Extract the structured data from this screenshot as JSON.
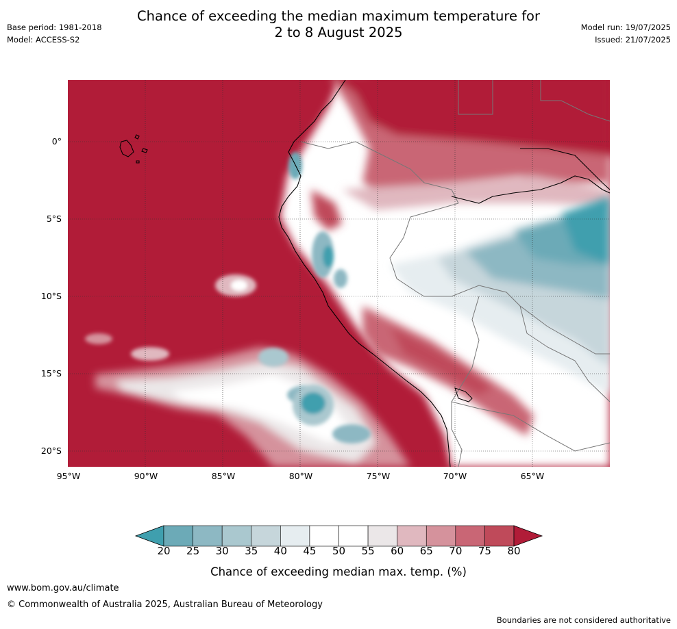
{
  "title_line1": "Chance of exceeding the median maximum temperature for",
  "title_line2": "2 to 8 August 2025",
  "base_period": "Base period: 1981-2018",
  "model": "Model: ACCESS-S2",
  "model_run": "Model run: 19/07/2025",
  "issued": "Issued: 21/07/2025",
  "lat_labels": [
    "0°",
    "5°S",
    "10°S",
    "15°S",
    "20°S"
  ],
  "lon_labels": [
    "95°W",
    "90°W",
    "85°W",
    "80°W",
    "75°W",
    "70°W",
    "65°W"
  ],
  "colorbar": {
    "ticks": [
      "20",
      "25",
      "30",
      "35",
      "40",
      "45",
      "50",
      "55",
      "60",
      "65",
      "70",
      "75",
      "80"
    ],
    "colors": [
      "#3f9fae",
      "#6caab7",
      "#8db8c3",
      "#aac8cf",
      "#c6d6db",
      "#e6edf0",
      "#ffffff",
      "#ffffff",
      "#ebe7e8",
      "#e0b8bf",
      "#d5929c",
      "#c96675",
      "#bf4a5a",
      "#b11c38"
    ],
    "label": "Chance of exceeding median max. temp. (%)"
  },
  "colors": {
    "ocean_hot": "#b11c38",
    "land_cool": "#3f9fae"
  },
  "website": "www.bom.gov.au/climate",
  "copyright": "© Commonwealth of Australia 2025, Australian Bureau of Meteorology",
  "disclaimer": "Boundaries are not considered authoritative"
}
